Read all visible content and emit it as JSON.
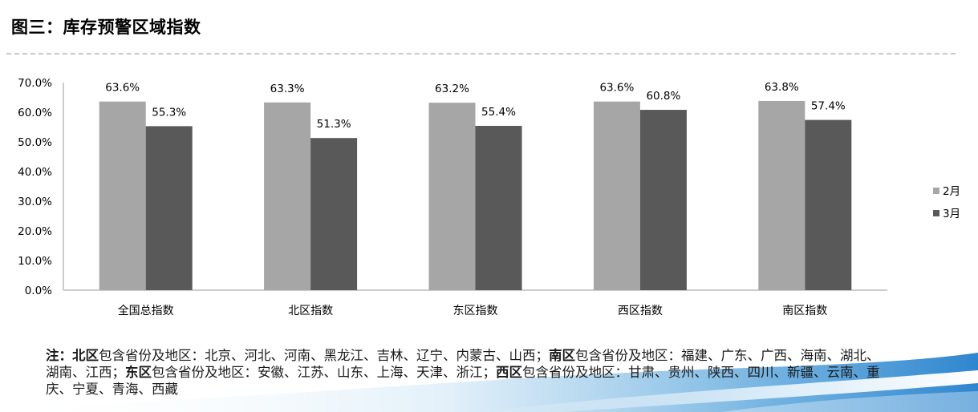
{
  "title": "图三：库存预警区域指数",
  "chart_data": {
    "type": "bar",
    "categories": [
      "全国总指数",
      "北区指数",
      "东区指数",
      "西区指数",
      "南区指数"
    ],
    "series": [
      {
        "name": "2月",
        "values": [
          63.6,
          63.3,
          63.2,
          63.6,
          63.8
        ],
        "labels": [
          "63.6%",
          "63.3%",
          "63.2%",
          "63.6%",
          "63.8%"
        ],
        "color": "#a6a6a6"
      },
      {
        "name": "3月",
        "values": [
          55.3,
          51.3,
          55.4,
          60.8,
          57.4
        ],
        "labels": [
          "55.3%",
          "51.3%",
          "55.4%",
          "60.8%",
          "57.4%"
        ],
        "color": "#595959"
      }
    ],
    "ylim": [
      0,
      70
    ],
    "yticks": [
      "0.0%",
      "10.0%",
      "20.0%",
      "30.0%",
      "40.0%",
      "50.0%",
      "60.0%",
      "70.0%"
    ],
    "legend_position": "right",
    "grid": false
  },
  "note": {
    "prefix": "注：",
    "north_label": "北区",
    "north_text": "包含省份及地区：北京、河北、河南、黑龙江、吉林、辽宁、内蒙古、山西；",
    "south_label": "南区",
    "south_text": "包含省份及地区：福建、广东、广西、海南、湖北、湖南、江西；",
    "east_label": "东区",
    "east_text": "包含省份及地区：安徽、江苏、山东、上海、天津、浙江；",
    "west_label": "西区",
    "west_text": "包含省份及地区：甘肃、贵州、陕西、四川、新疆、云南、重庆、宁夏、青海、西藏"
  }
}
